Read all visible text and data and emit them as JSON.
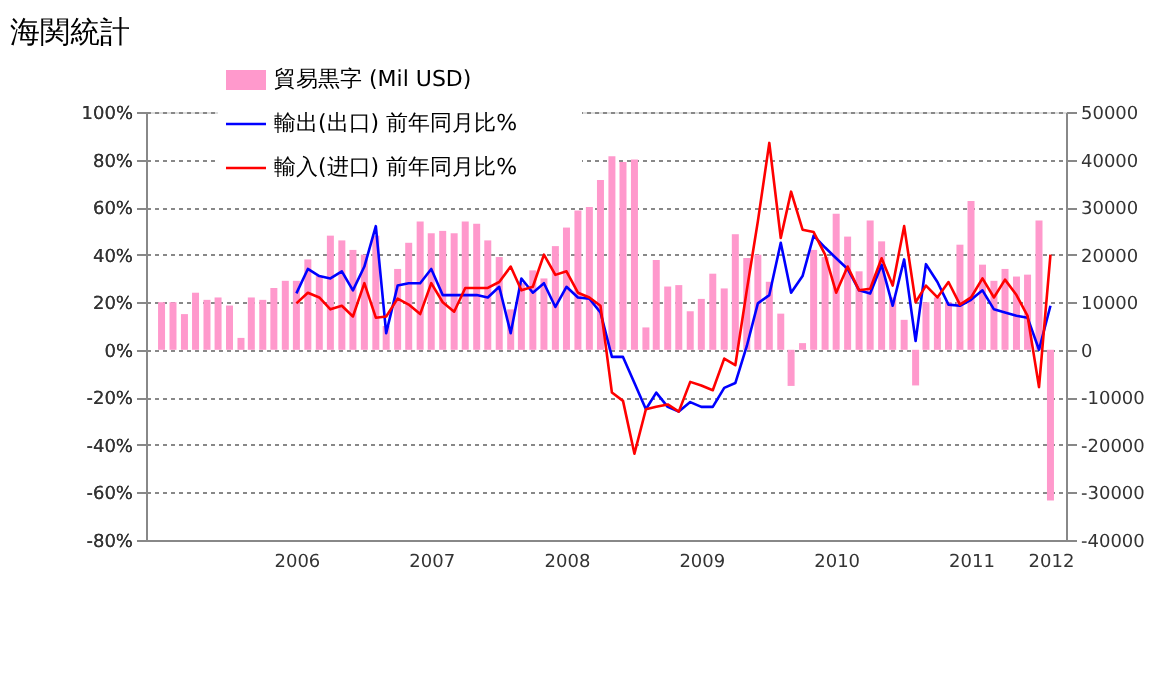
{
  "chart_data": {
    "type": "bar",
    "title": "海関統計",
    "x": [
      "2005-07",
      "2005-08",
      "2005-09",
      "2005-10",
      "2005-11",
      "2005-12",
      "2006-01",
      "2006-02",
      "2006-03",
      "2006-04",
      "2006-05",
      "2006-06",
      "2006-07",
      "2006-08",
      "2006-09",
      "2006-10",
      "2006-11",
      "2006-12",
      "2007-01",
      "2007-02",
      "2007-03",
      "2007-04",
      "2007-05",
      "2007-06",
      "2007-07",
      "2007-08",
      "2007-09",
      "2007-10",
      "2007-11",
      "2007-12",
      "2008-01",
      "2008-02",
      "2008-03",
      "2008-04",
      "2008-05",
      "2008-06",
      "2008-07",
      "2008-08",
      "2008-09",
      "2008-10",
      "2008-11",
      "2008-12",
      "2009-01",
      "2009-02",
      "2009-03",
      "2009-04",
      "2009-05",
      "2009-06",
      "2009-07",
      "2009-08",
      "2009-09",
      "2009-10",
      "2009-11",
      "2009-12",
      "2010-01",
      "2010-02",
      "2010-03",
      "2010-04",
      "2010-05",
      "2010-06",
      "2010-07",
      "2010-08",
      "2010-09",
      "2010-10",
      "2010-11",
      "2010-12",
      "2011-01",
      "2011-02",
      "2011-03",
      "2011-04",
      "2011-05",
      "2011-06",
      "2011-07",
      "2011-08",
      "2011-09",
      "2011-10",
      "2011-11",
      "2011-12",
      "2012-01",
      "2012-02"
    ],
    "xlim": [
      "2005-06-16",
      "2012-02-16"
    ],
    "xticks": [
      {
        "value": "2006-07-01",
        "label": "2006"
      },
      {
        "value": "2007-07-01",
        "label": "2007"
      },
      {
        "value": "2008-07-01",
        "label": "2008"
      },
      {
        "value": "2009-07-01",
        "label": "2009"
      },
      {
        "value": "2010-07-01",
        "label": "2010"
      },
      {
        "value": "2011-07-01",
        "label": "2011"
      },
      {
        "value": "2012-02-01",
        "label": "2012"
      }
    ],
    "ylim": [
      -80,
      100
    ],
    "yticks": [
      {
        "value": -80,
        "label": "-80%"
      },
      {
        "value": -60,
        "label": "-60%"
      },
      {
        "value": -40,
        "label": "-40%"
      },
      {
        "value": -20,
        "label": "-20%"
      },
      {
        "value": 0,
        "label": "0%"
      },
      {
        "value": 20,
        "label": "20%"
      },
      {
        "value": 40,
        "label": "40%"
      },
      {
        "value": 60,
        "label": "60%"
      },
      {
        "value": 80,
        "label": "80%"
      },
      {
        "value": 100,
        "label": "100%"
      }
    ],
    "y2lim": [
      -40000,
      50000
    ],
    "y2ticks": [
      -40000,
      -30000,
      -20000,
      -10000,
      0,
      10000,
      20000,
      30000,
      40000,
      50000
    ],
    "grid": "y",
    "legend": "top left",
    "series": [
      {
        "name": "貿易黒字 (Mil USD)",
        "axis": "y2",
        "color": "#ff99cc",
        "values": [
          10000,
          10000,
          7500,
          12000,
          10500,
          11000,
          9300,
          2500,
          11000,
          10500,
          13000,
          14500,
          14500,
          19000,
          15500,
          24000,
          23000,
          21000,
          20000,
          24000,
          5000,
          17000,
          22500,
          27000,
          24500,
          25000,
          24500,
          27000,
          26500,
          23000,
          19500,
          8500,
          14000,
          16700,
          15000,
          21800,
          25700,
          29300,
          30000,
          35700,
          40700,
          39500,
          40000,
          4700,
          18900,
          13300,
          13600,
          8100,
          10700,
          16000,
          12900,
          24300,
          19300,
          20000,
          14300,
          7600,
          -7600,
          1400,
          21000,
          19500,
          28600,
          23800,
          16500,
          27200,
          22800,
          11000,
          6300,
          -7500,
          10000,
          11000,
          10000,
          22100,
          31300,
          17900,
          14500,
          17000,
          15400,
          15800,
          27200,
          -31700
        ]
      },
      {
        "name": "輸出(出口) 前年同月比%",
        "type": "line",
        "color": "#0000ff",
        "values": [
          null,
          null,
          null,
          null,
          null,
          null,
          null,
          null,
          null,
          null,
          null,
          null,
          23.7,
          34,
          31,
          30,
          33,
          25,
          35,
          52,
          7,
          27,
          28,
          28,
          34,
          23,
          23,
          23,
          23,
          22,
          26.5,
          7,
          30,
          24,
          28,
          18,
          26.5,
          22,
          21.5,
          15.7,
          -3,
          -3,
          -14,
          -25,
          -18,
          -24,
          -26,
          -22,
          -24,
          -24,
          -16,
          -14,
          1.5,
          19.5,
          23,
          45,
          24,
          31,
          48,
          43,
          38.5,
          34,
          25,
          23.7,
          35.7,
          18.5,
          38,
          3.7,
          36,
          28.5,
          19,
          18.5,
          21,
          25,
          17,
          15.7,
          14.3,
          13.5,
          0,
          18.5
        ]
      },
      {
        "name": "輸入(进口) 前年同月比%",
        "type": "line",
        "color": "#ff0000",
        "values": [
          null,
          null,
          null,
          null,
          null,
          null,
          null,
          null,
          null,
          null,
          null,
          null,
          19.5,
          24,
          22,
          17,
          18.5,
          14,
          28,
          13.5,
          14,
          21.5,
          19,
          15,
          28,
          20,
          16,
          26,
          26,
          26,
          28.5,
          35,
          25,
          26.5,
          40,
          31.5,
          33,
          24,
          22,
          18.5,
          -18,
          -21.5,
          -43.7,
          -25,
          -24,
          -23,
          -26,
          -13.5,
          -15,
          -17,
          -3.7,
          -6.5,
          25,
          54,
          87,
          47,
          66.5,
          50.5,
          49.5,
          40,
          24,
          35,
          25,
          25.7,
          38.5,
          27,
          52,
          20,
          27,
          22,
          28.5,
          19,
          22,
          30,
          22,
          29.5,
          23,
          14.3,
          -15.7,
          40
        ]
      }
    ]
  }
}
